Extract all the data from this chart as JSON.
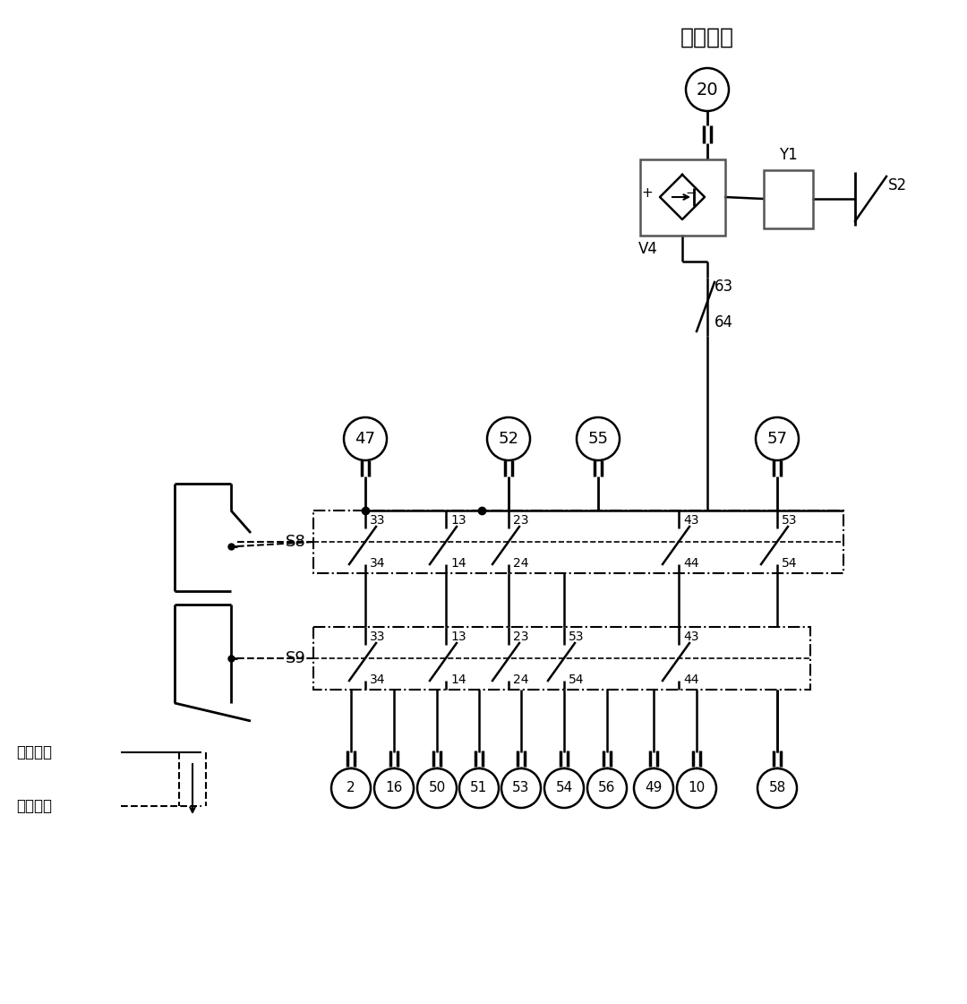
{
  "bg_color": "#ffffff",
  "title_text": "闭锁回路",
  "node20": "20",
  "nodeV4": "V4",
  "nodeY1": "Y1",
  "nodeS2": "S2",
  "node63": "63",
  "node64": "64",
  "top_nodes": [
    "47",
    "52",
    "55",
    "57"
  ],
  "s8_label": "S8",
  "s9_label": "S9",
  "s8_contacts_top": [
    "33",
    "13",
    "23",
    "43",
    "53"
  ],
  "s8_contacts_bot": [
    "34",
    "14",
    "24",
    "44",
    "54"
  ],
  "s9_contacts_top": [
    "33",
    "13",
    "23",
    "53",
    "43"
  ],
  "s9_contacts_bot": [
    "34",
    "14",
    "24",
    "54",
    "44"
  ],
  "bottom_nodes": [
    "2",
    "16",
    "50",
    "51",
    "53",
    "54",
    "56",
    "49",
    "10",
    "58"
  ],
  "work_pos": "工作位置",
  "test_pos": "试验位置"
}
